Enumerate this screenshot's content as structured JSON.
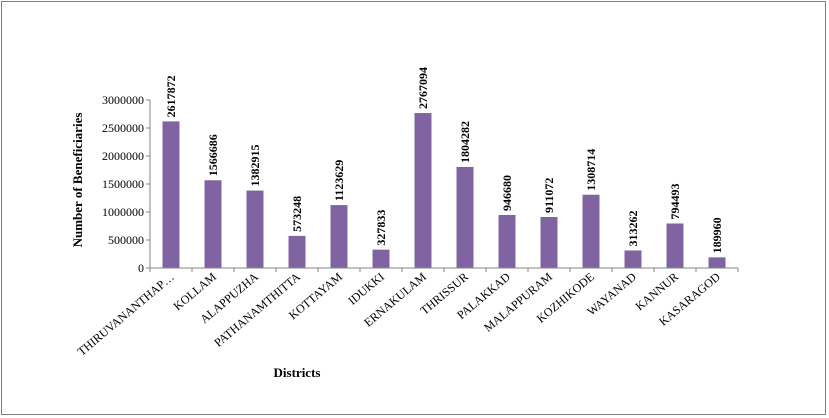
{
  "chart_data": {
    "type": "bar",
    "title": "",
    "xlabel": "Districts",
    "ylabel": "Number of Beneficiaries",
    "ylim": [
      0,
      3000000
    ],
    "yticks": [
      0,
      500000,
      1000000,
      1500000,
      2000000,
      2500000,
      3000000
    ],
    "grid": false,
    "legend": "none",
    "bar_color": "#8064a2",
    "categories": [
      "THIRUVANANTHAP…",
      "KOLLAM",
      "ALAPPUZHA",
      "PATHANAMTHITTA",
      "KOTTAYAM",
      "IDUKKI",
      "ERNAKULAM",
      "THRISSUR",
      "PALAKKAD",
      "MALAPPURAM",
      "KOZHIKODE",
      "WAYANAD",
      "KANNUR",
      "KASARAGOD"
    ],
    "values": [
      2617872,
      1566686,
      1382915,
      573248,
      1123629,
      327833,
      2767094,
      1804282,
      946680,
      911072,
      1308714,
      313262,
      794493,
      189960
    ],
    "data_labels": [
      "2617872",
      "1566686",
      "1382915",
      "573248",
      "1123629",
      "327833",
      "2767094",
      "1804282",
      "946680",
      "911072",
      "1308714",
      "313262",
      "794493",
      "189960"
    ]
  }
}
